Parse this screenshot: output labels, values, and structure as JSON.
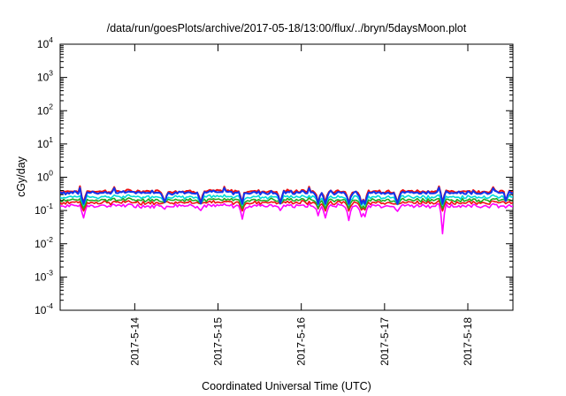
{
  "chart_data": {
    "type": "line",
    "title": "/data/run/goesPlots/archive/2017-05-18/13:00/flux/../bryn/5daysMoon.plot",
    "xlabel": "Coordinated Universal Time (UTC)",
    "ylabel": "cGy/day",
    "yscale": "log",
    "ylim": [
      0.0001,
      10000
    ],
    "xlim": [
      "2017-05-13 02:30",
      "2017-05-18 13:00"
    ],
    "y_ticks": [
      {
        "base": "10",
        "exp": "-4",
        "value": 0.0001
      },
      {
        "base": "10",
        "exp": "-3",
        "value": 0.001
      },
      {
        "base": "10",
        "exp": "-2",
        "value": 0.01
      },
      {
        "base": "10",
        "exp": "-1",
        "value": 0.1
      },
      {
        "base": "10",
        "exp": "0",
        "value": 1
      },
      {
        "base": "10",
        "exp": "1",
        "value": 10
      },
      {
        "base": "10",
        "exp": "2",
        "value": 100
      },
      {
        "base": "10",
        "exp": "3",
        "value": 1000
      },
      {
        "base": "10",
        "exp": "4",
        "value": 10000
      }
    ],
    "x_ticks": [
      {
        "label": "2017-5-14",
        "time": "2017-05-14 00:00"
      },
      {
        "label": "2017-5-15",
        "time": "2017-05-15 00:00"
      },
      {
        "label": "2017-5-16",
        "time": "2017-05-16 00:00"
      },
      {
        "label": "2017-5-17",
        "time": "2017-05-17 00:00"
      },
      {
        "label": "2017-5-18",
        "time": "2017-05-18 00:00"
      }
    ],
    "grid": false,
    "legend": "none",
    "series": [
      {
        "color": "#ee1111",
        "baseline": 0.38,
        "jitter": 0.07,
        "spike_depth": 0.55,
        "values": []
      },
      {
        "color": "#1133ee",
        "baseline": 0.35,
        "jitter": 0.07,
        "spike_depth": 0.55,
        "values": []
      },
      {
        "color": "#00d9d9",
        "baseline": 0.26,
        "jitter": 0.05,
        "spike_depth": 0.45,
        "values": []
      },
      {
        "color": "#22aa22",
        "baseline": 0.21,
        "jitter": 0.04,
        "spike_depth": 0.45,
        "values": []
      },
      {
        "color": "#ee1111",
        "baseline": 0.175,
        "jitter": 0.035,
        "spike_depth": 0.45,
        "values": []
      },
      {
        "color": "#ff00ff",
        "baseline": 0.14,
        "jitter": 0.03,
        "spike_depth": 1.0,
        "values": []
      }
    ],
    "dips": [
      {
        "time": "2017-05-13 09:00",
        "value": 0.06
      },
      {
        "time": "2017-05-14 08:30",
        "value": 0.11
      },
      {
        "time": "2017-05-14 19:00",
        "value": 0.1
      },
      {
        "time": "2017-05-15 07:00",
        "value": 0.055
      },
      {
        "time": "2017-05-15 18:00",
        "value": 0.1
      },
      {
        "time": "2017-05-16 05:00",
        "value": 0.07
      },
      {
        "time": "2017-05-16 07:00",
        "value": 0.06
      },
      {
        "time": "2017-05-16 13:30",
        "value": 0.05
      },
      {
        "time": "2017-05-16 17:30",
        "value": 0.065
      },
      {
        "time": "2017-05-16 18:30",
        "value": 0.065
      },
      {
        "time": "2017-05-17 03:30",
        "value": 0.095
      },
      {
        "time": "2017-05-17 16:30",
        "value": 0.02
      },
      {
        "time": "2017-05-18 11:00",
        "value": 0.12
      }
    ]
  }
}
